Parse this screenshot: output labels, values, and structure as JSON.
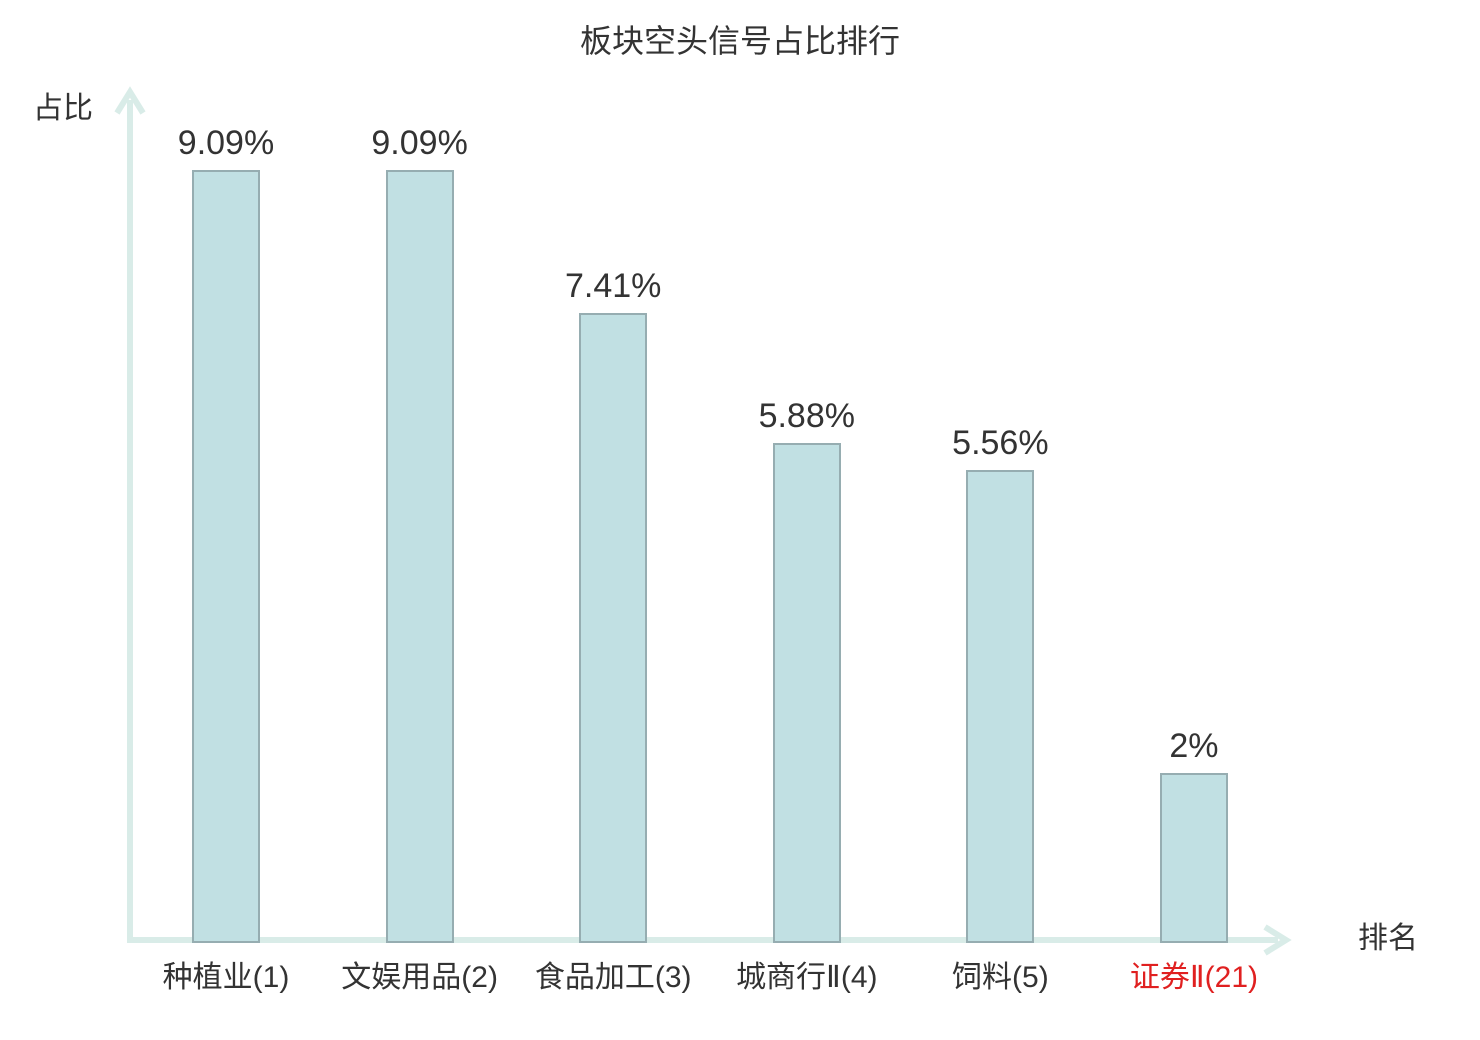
{
  "chart_data": {
    "type": "bar",
    "title": "板块空头信号占比排行",
    "ylabel": "占比",
    "xlabel": "排名",
    "categories": [
      "种植业(1)",
      "文娱用品(2)",
      "食品加工(3)",
      "城商行Ⅱ(4)",
      "饲料(5)",
      "证券Ⅱ(21)"
    ],
    "values": [
      9.09,
      9.09,
      7.41,
      5.88,
      5.56,
      2
    ],
    "value_labels": [
      "9.09%",
      "9.09%",
      "7.41%",
      "5.88%",
      "5.56%",
      "2%"
    ],
    "highlight_index": 5,
    "ylim": [
      0,
      10
    ],
    "grid": false,
    "colors": {
      "bar_fill": "#c1e0e3",
      "bar_border": "#96adb1",
      "axis": "#d9ece8",
      "text": "#333333",
      "highlight_text": "#e02020",
      "background": "#ffffff"
    }
  }
}
